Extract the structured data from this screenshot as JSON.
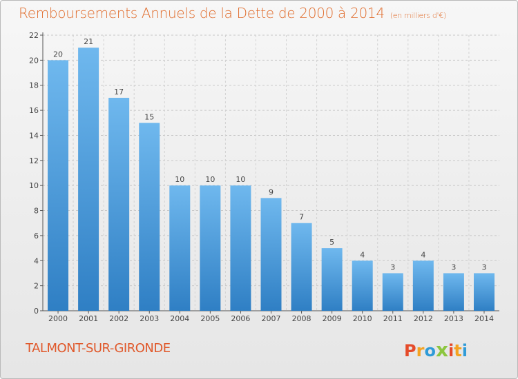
{
  "chart_data": {
    "type": "bar",
    "title": "Remboursements Annuels de la Dette de 2000 à 2014",
    "subtitle": "(en milliers d'€)",
    "categories": [
      "2000",
      "2001",
      "2002",
      "2003",
      "2004",
      "2005",
      "2006",
      "2007",
      "2008",
      "2009",
      "2010",
      "2011",
      "2012",
      "2013",
      "2014"
    ],
    "values": [
      20,
      21,
      17,
      15,
      10,
      10,
      10,
      9,
      7,
      5,
      4,
      3,
      4,
      3,
      3
    ],
    "ylim": [
      0,
      22
    ],
    "yticks": [
      0,
      2,
      4,
      6,
      8,
      10,
      12,
      14,
      16,
      18,
      20,
      22
    ],
    "xlabel": "",
    "ylabel": "",
    "grid": true,
    "data_labels": true,
    "bar_color": "#4a9fdf"
  },
  "footer": {
    "commune": "TALMONT-SUR-GIRONDE",
    "logo_text": "Proxiti"
  },
  "colors": {
    "title": "#e06c2c",
    "bar_top": "#6fb8ee",
    "bar_bottom": "#2f7fc4",
    "logo": [
      "#e54b2a",
      "#f4a321",
      "#2f9bd7",
      "#8cc63f",
      "#e54b2a",
      "#f4a321",
      "#2f9bd7"
    ]
  }
}
